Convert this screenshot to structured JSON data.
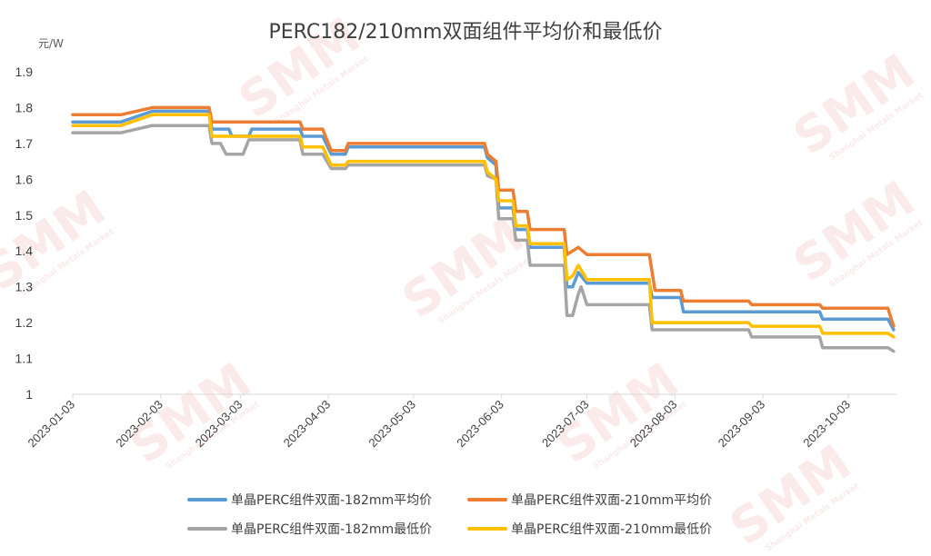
{
  "colors": {
    "blue": "#5b9bd5",
    "orange": "#ed7d31",
    "gray": "#a5a5a5",
    "gold": "#ffc000",
    "axis": "#d9d9d9",
    "text": "#404040"
  },
  "watermark": {
    "brand": "SMM",
    "sub": "Shanghai Metals Market"
  },
  "chart_data": {
    "type": "line",
    "title": "PERC182/210mm双面组件平均价和最低价",
    "ylabel": "元/W",
    "ylim": [
      1,
      1.9
    ],
    "yticks": [
      "1",
      "1.1",
      "1.2",
      "1.3",
      "1.4",
      "1.5",
      "1.6",
      "1.7",
      "1.8",
      "1.9"
    ],
    "xlim": [
      "2023-01-03",
      "2023-10-20"
    ],
    "xticks": [
      "2023-01-03",
      "2023-02-03",
      "2023-03-03",
      "2023-04-03",
      "2023-05-03",
      "2023-06-03",
      "2023-07-03",
      "2023-08-03",
      "2023-09-03",
      "2023-10-03"
    ],
    "grid": false,
    "legend": "bottom",
    "series": [
      {
        "name": "单晶PERC组件双面-182mm平均价",
        "color": "#5b9bd5",
        "points": [
          [
            "2023-01-03",
            1.76
          ],
          [
            "2023-01-20",
            1.76
          ],
          [
            "2023-01-31",
            1.79
          ],
          [
            "2023-02-20",
            1.79
          ],
          [
            "2023-02-21",
            1.74
          ],
          [
            "2023-02-27",
            1.74
          ],
          [
            "2023-02-28",
            1.72
          ],
          [
            "2023-03-06",
            1.72
          ],
          [
            "2023-03-07",
            1.74
          ],
          [
            "2023-03-24",
            1.74
          ],
          [
            "2023-03-25",
            1.72
          ],
          [
            "2023-04-01",
            1.72
          ],
          [
            "2023-04-04",
            1.67
          ],
          [
            "2023-04-09",
            1.67
          ],
          [
            "2023-04-10",
            1.69
          ],
          [
            "2023-05-28",
            1.69
          ],
          [
            "2023-05-29",
            1.66
          ],
          [
            "2023-06-01",
            1.64
          ],
          [
            "2023-06-02",
            1.52
          ],
          [
            "2023-06-07",
            1.52
          ],
          [
            "2023-06-08",
            1.46
          ],
          [
            "2023-06-12",
            1.46
          ],
          [
            "2023-06-13",
            1.41
          ],
          [
            "2023-06-25",
            1.41
          ],
          [
            "2023-06-26",
            1.3
          ],
          [
            "2023-06-28",
            1.3
          ],
          [
            "2023-06-30",
            1.34
          ],
          [
            "2023-07-03",
            1.31
          ],
          [
            "2023-07-05",
            1.31
          ],
          [
            "2023-07-25",
            1.31
          ],
          [
            "2023-07-26",
            1.27
          ],
          [
            "2023-08-05",
            1.27
          ],
          [
            "2023-08-06",
            1.23
          ],
          [
            "2023-09-23",
            1.23
          ],
          [
            "2023-09-24",
            1.21
          ],
          [
            "2023-10-17",
            1.21
          ],
          [
            "2023-10-19",
            1.18
          ]
        ]
      },
      {
        "name": "单晶PERC组件双面-210mm平均价",
        "color": "#ed7d31",
        "points": [
          [
            "2023-01-03",
            1.78
          ],
          [
            "2023-01-20",
            1.78
          ],
          [
            "2023-01-31",
            1.8
          ],
          [
            "2023-02-20",
            1.8
          ],
          [
            "2023-02-21",
            1.76
          ],
          [
            "2023-03-24",
            1.76
          ],
          [
            "2023-03-25",
            1.74
          ],
          [
            "2023-04-01",
            1.74
          ],
          [
            "2023-04-04",
            1.68
          ],
          [
            "2023-04-09",
            1.68
          ],
          [
            "2023-04-10",
            1.7
          ],
          [
            "2023-05-28",
            1.7
          ],
          [
            "2023-05-29",
            1.67
          ],
          [
            "2023-06-01",
            1.65
          ],
          [
            "2023-06-02",
            1.57
          ],
          [
            "2023-06-07",
            1.57
          ],
          [
            "2023-06-08",
            1.51
          ],
          [
            "2023-06-12",
            1.51
          ],
          [
            "2023-06-13",
            1.46
          ],
          [
            "2023-06-25",
            1.46
          ],
          [
            "2023-06-26",
            1.39
          ],
          [
            "2023-06-28",
            1.4
          ],
          [
            "2023-06-30",
            1.41
          ],
          [
            "2023-07-03",
            1.39
          ],
          [
            "2023-07-25",
            1.39
          ],
          [
            "2023-07-26",
            1.34
          ],
          [
            "2023-07-27",
            1.29
          ],
          [
            "2023-08-05",
            1.29
          ],
          [
            "2023-08-06",
            1.26
          ],
          [
            "2023-08-29",
            1.26
          ],
          [
            "2023-08-30",
            1.25
          ],
          [
            "2023-09-23",
            1.25
          ],
          [
            "2023-09-24",
            1.24
          ],
          [
            "2023-10-17",
            1.24
          ],
          [
            "2023-10-19",
            1.19
          ]
        ]
      },
      {
        "name": "单晶PERC组件双面-182mm最低价",
        "color": "#a5a5a5",
        "points": [
          [
            "2023-01-03",
            1.73
          ],
          [
            "2023-01-20",
            1.73
          ],
          [
            "2023-01-31",
            1.75
          ],
          [
            "2023-02-20",
            1.75
          ],
          [
            "2023-02-21",
            1.7
          ],
          [
            "2023-02-24",
            1.7
          ],
          [
            "2023-02-26",
            1.67
          ],
          [
            "2023-03-04",
            1.67
          ],
          [
            "2023-03-06",
            1.71
          ],
          [
            "2023-03-24",
            1.71
          ],
          [
            "2023-03-25",
            1.67
          ],
          [
            "2023-04-01",
            1.67
          ],
          [
            "2023-04-04",
            1.63
          ],
          [
            "2023-04-09",
            1.63
          ],
          [
            "2023-04-10",
            1.64
          ],
          [
            "2023-05-28",
            1.64
          ],
          [
            "2023-05-29",
            1.61
          ],
          [
            "2023-06-01",
            1.6
          ],
          [
            "2023-06-02",
            1.49
          ],
          [
            "2023-06-07",
            1.49
          ],
          [
            "2023-06-08",
            1.43
          ],
          [
            "2023-06-12",
            1.43
          ],
          [
            "2023-06-13",
            1.36
          ],
          [
            "2023-06-25",
            1.36
          ],
          [
            "2023-06-26",
            1.22
          ],
          [
            "2023-06-28",
            1.22
          ],
          [
            "2023-06-30",
            1.28
          ],
          [
            "2023-07-01",
            1.3
          ],
          [
            "2023-07-03",
            1.25
          ],
          [
            "2023-07-25",
            1.25
          ],
          [
            "2023-07-26",
            1.18
          ],
          [
            "2023-08-29",
            1.18
          ],
          [
            "2023-08-30",
            1.16
          ],
          [
            "2023-09-23",
            1.16
          ],
          [
            "2023-09-24",
            1.13
          ],
          [
            "2023-10-17",
            1.13
          ],
          [
            "2023-10-19",
            1.12
          ]
        ]
      },
      {
        "name": "单晶PERC组件双面-210mm最低价",
        "color": "#ffc000",
        "points": [
          [
            "2023-01-03",
            1.75
          ],
          [
            "2023-01-20",
            1.75
          ],
          [
            "2023-01-31",
            1.78
          ],
          [
            "2023-02-20",
            1.78
          ],
          [
            "2023-02-21",
            1.72
          ],
          [
            "2023-03-24",
            1.72
          ],
          [
            "2023-03-25",
            1.69
          ],
          [
            "2023-04-01",
            1.69
          ],
          [
            "2023-04-04",
            1.64
          ],
          [
            "2023-04-09",
            1.64
          ],
          [
            "2023-04-10",
            1.65
          ],
          [
            "2023-05-28",
            1.65
          ],
          [
            "2023-05-29",
            1.62
          ],
          [
            "2023-06-01",
            1.6
          ],
          [
            "2023-06-02",
            1.54
          ],
          [
            "2023-06-07",
            1.54
          ],
          [
            "2023-06-08",
            1.47
          ],
          [
            "2023-06-12",
            1.47
          ],
          [
            "2023-06-13",
            1.42
          ],
          [
            "2023-06-25",
            1.42
          ],
          [
            "2023-06-26",
            1.32
          ],
          [
            "2023-06-28",
            1.33
          ],
          [
            "2023-06-30",
            1.36
          ],
          [
            "2023-07-03",
            1.32
          ],
          [
            "2023-07-25",
            1.32
          ],
          [
            "2023-07-26",
            1.2
          ],
          [
            "2023-08-29",
            1.2
          ],
          [
            "2023-08-30",
            1.19
          ],
          [
            "2023-09-23",
            1.19
          ],
          [
            "2023-09-24",
            1.17
          ],
          [
            "2023-10-17",
            1.17
          ],
          [
            "2023-10-19",
            1.16
          ]
        ]
      }
    ]
  }
}
